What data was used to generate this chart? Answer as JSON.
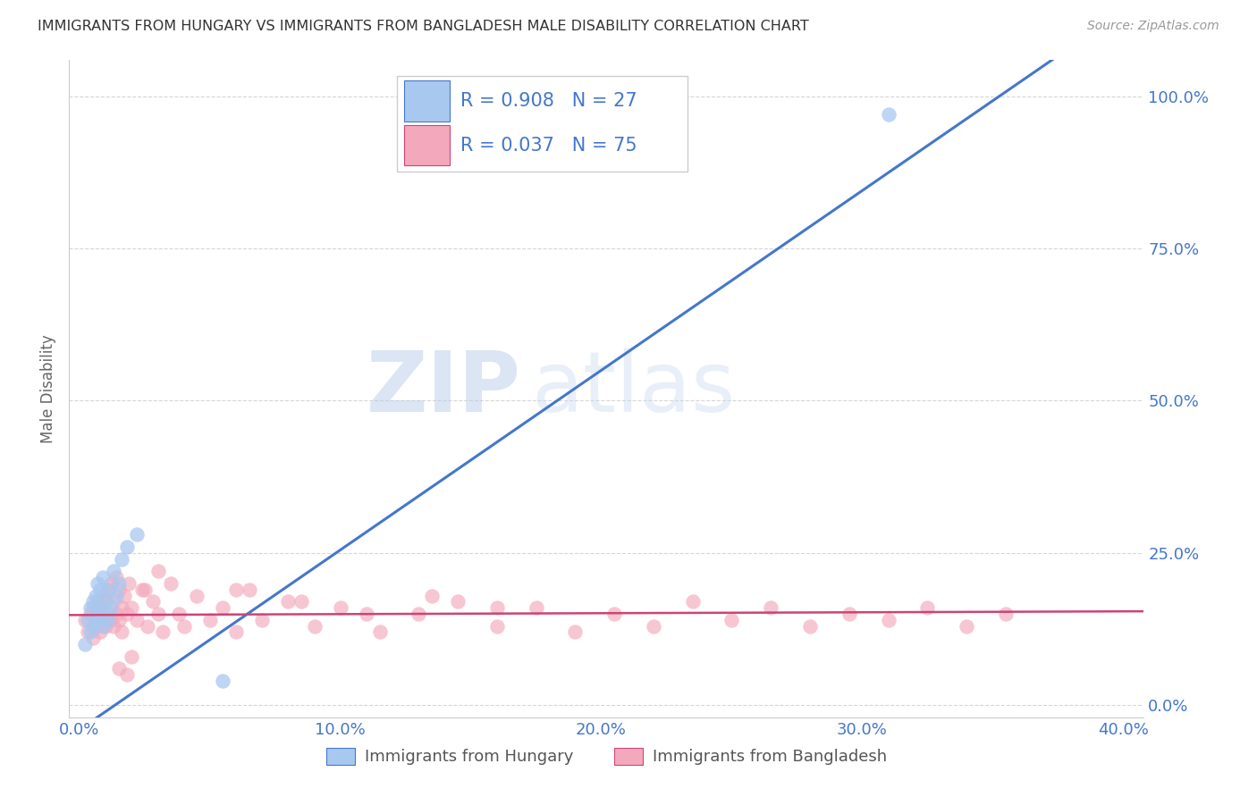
{
  "title": "IMMIGRANTS FROM HUNGARY VS IMMIGRANTS FROM BANGLADESH MALE DISABILITY CORRELATION CHART",
  "source": "Source: ZipAtlas.com",
  "xlim": [
    0.0,
    0.4
  ],
  "ylim": [
    0.0,
    1.05
  ],
  "ylabel": "Male Disability",
  "legend1_label": "Immigrants from Hungary",
  "legend2_label": "Immigrants from Bangladesh",
  "hungary_R": "0.908",
  "hungary_N": "27",
  "bangladesh_R": "0.037",
  "bangladesh_N": "75",
  "hungary_color": "#a8c8f0",
  "bangladesh_color": "#f4a8bc",
  "hungary_line_color": "#4477cc",
  "bangladesh_line_color": "#cc4477",
  "background_color": "#ffffff",
  "grid_color": "#cccccc",
  "title_color": "#333333",
  "axis_tick_color": "#4477cc",
  "watermark_zip": "ZIP",
  "watermark_atlas": "atlas",
  "hungary_points_x": [
    0.002,
    0.003,
    0.004,
    0.004,
    0.005,
    0.005,
    0.006,
    0.006,
    0.007,
    0.007,
    0.008,
    0.008,
    0.009,
    0.009,
    0.01,
    0.01,
    0.011,
    0.011,
    0.012,
    0.013,
    0.014,
    0.015,
    0.016,
    0.018,
    0.022,
    0.055,
    0.31
  ],
  "hungary_points_y": [
    0.1,
    0.14,
    0.12,
    0.16,
    0.13,
    0.17,
    0.15,
    0.18,
    0.14,
    0.2,
    0.16,
    0.19,
    0.13,
    0.21,
    0.15,
    0.17,
    0.14,
    0.19,
    0.16,
    0.22,
    0.18,
    0.2,
    0.24,
    0.26,
    0.28,
    0.04,
    0.97
  ],
  "bangladesh_points_x": [
    0.002,
    0.003,
    0.004,
    0.005,
    0.005,
    0.006,
    0.007,
    0.007,
    0.008,
    0.008,
    0.009,
    0.009,
    0.01,
    0.01,
    0.011,
    0.011,
    0.012,
    0.012,
    0.013,
    0.013,
    0.014,
    0.014,
    0.015,
    0.015,
    0.016,
    0.016,
    0.017,
    0.018,
    0.019,
    0.02,
    0.022,
    0.024,
    0.026,
    0.028,
    0.03,
    0.032,
    0.035,
    0.038,
    0.04,
    0.045,
    0.05,
    0.055,
    0.06,
    0.065,
    0.07,
    0.08,
    0.09,
    0.1,
    0.115,
    0.13,
    0.145,
    0.16,
    0.175,
    0.19,
    0.205,
    0.22,
    0.235,
    0.25,
    0.265,
    0.28,
    0.295,
    0.31,
    0.325,
    0.34,
    0.355,
    0.03,
    0.025,
    0.02,
    0.018,
    0.015,
    0.06,
    0.085,
    0.11,
    0.135,
    0.16
  ],
  "bangladesh_points_y": [
    0.14,
    0.12,
    0.15,
    0.11,
    0.16,
    0.13,
    0.15,
    0.17,
    0.12,
    0.16,
    0.14,
    0.18,
    0.13,
    0.17,
    0.15,
    0.19,
    0.14,
    0.2,
    0.13,
    0.17,
    0.15,
    0.21,
    0.14,
    0.19,
    0.16,
    0.12,
    0.18,
    0.15,
    0.2,
    0.16,
    0.14,
    0.19,
    0.13,
    0.17,
    0.15,
    0.12,
    0.2,
    0.15,
    0.13,
    0.18,
    0.14,
    0.16,
    0.12,
    0.19,
    0.14,
    0.17,
    0.13,
    0.16,
    0.12,
    0.15,
    0.17,
    0.13,
    0.16,
    0.12,
    0.15,
    0.13,
    0.17,
    0.14,
    0.16,
    0.13,
    0.15,
    0.14,
    0.16,
    0.13,
    0.15,
    0.22,
    0.19,
    0.08,
    0.05,
    0.06,
    0.19,
    0.17,
    0.15,
    0.18,
    0.16
  ],
  "hungary_line_slope": 2.95,
  "hungary_line_intercept": -0.04,
  "bangladesh_line_slope": 0.015,
  "bangladesh_line_intercept": 0.148
}
